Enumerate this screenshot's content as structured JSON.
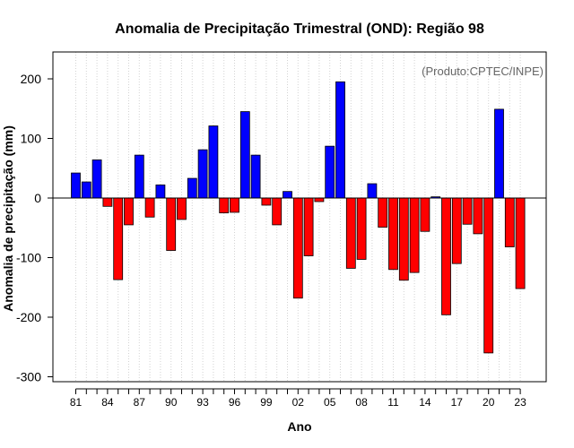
{
  "chart_data": {
    "type": "bar",
    "title": "Anomalia de Precipitação Trimestral (OND): Região 98",
    "xlabel": "Ano",
    "ylabel": "Anomalia de precipitação (mm)",
    "annotation": "(Produto:CPTEC/INPE)",
    "ylim": [
      -310,
      245
    ],
    "yticks": [
      -300,
      -200,
      -100,
      0,
      100,
      200
    ],
    "xtick_labels": [
      "81",
      "84",
      "87",
      "90",
      "93",
      "96",
      "99",
      "02",
      "05",
      "08",
      "11",
      "14",
      "17",
      "20",
      "23"
    ],
    "grid": true,
    "colors": {
      "positive": "#0000ff",
      "negative": "#ff0000",
      "border": "#000000",
      "grid": "#d3d3d3"
    },
    "years": [
      1981,
      1982,
      1983,
      1984,
      1985,
      1986,
      1987,
      1988,
      1989,
      1990,
      1991,
      1992,
      1993,
      1994,
      1995,
      1996,
      1997,
      1998,
      1999,
      2000,
      2001,
      2002,
      2003,
      2004,
      2005,
      2006,
      2007,
      2008,
      2009,
      2010,
      2011,
      2012,
      2013,
      2014,
      2015,
      2016,
      2017,
      2018,
      2019,
      2020,
      2021,
      2022,
      2023
    ],
    "values": [
      42,
      27,
      64,
      -14,
      -137,
      -45,
      72,
      -32,
      22,
      -88,
      -36,
      33,
      81,
      121,
      -25,
      -24,
      145,
      72,
      -12,
      -45,
      11,
      -168,
      -97,
      -6,
      87,
      195,
      -118,
      -103,
      24,
      -49,
      -120,
      -138,
      -125,
      -56,
      2,
      -196,
      -110,
      -44,
      -60,
      -260,
      149,
      -82,
      -152
    ]
  }
}
